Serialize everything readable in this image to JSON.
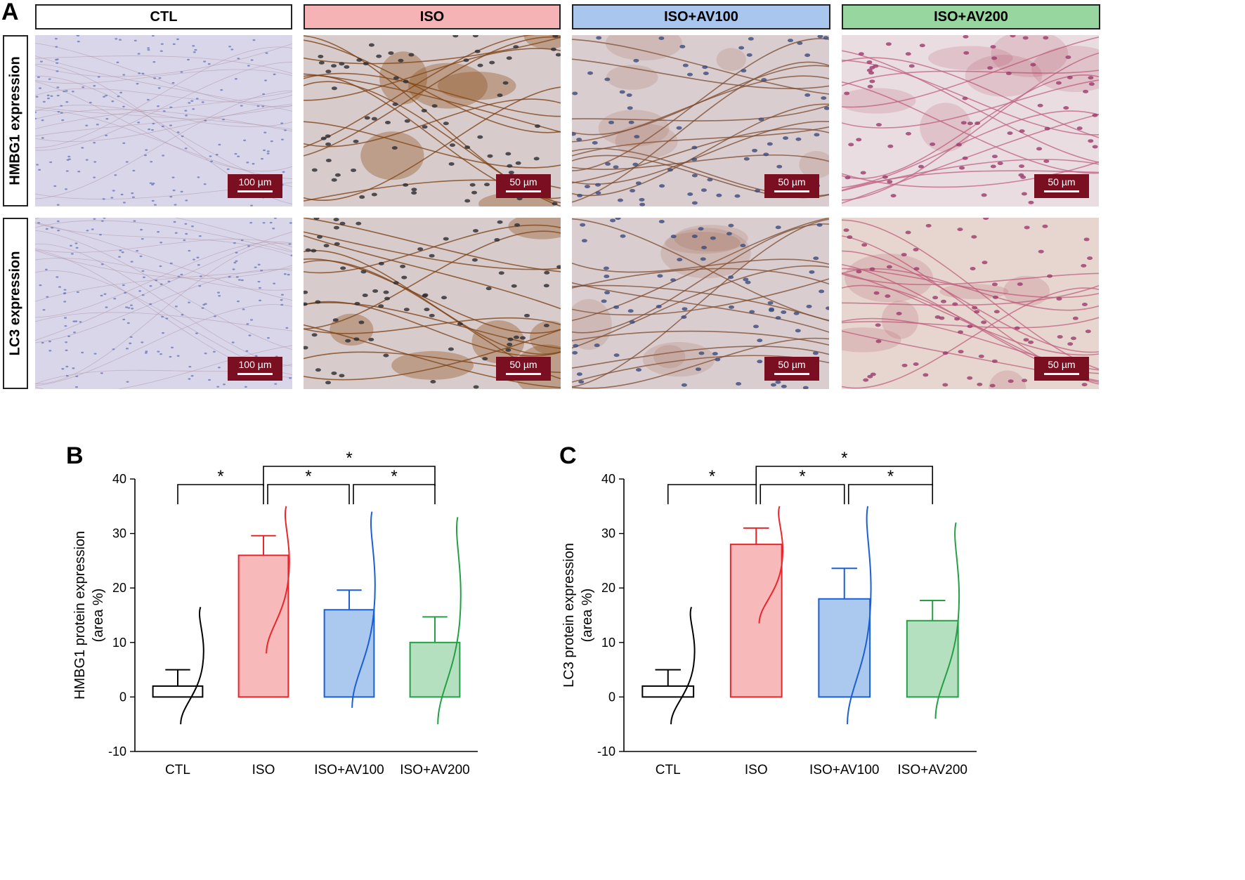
{
  "panel_a": {
    "letter": "A",
    "groups": [
      {
        "label": "CTL",
        "color": "#ffffff"
      },
      {
        "label": "ISO",
        "color": "#f6b3b5"
      },
      {
        "label": "ISO+AV100",
        "color": "#a9c6ef"
      },
      {
        "label": "ISO+AV200",
        "color": "#98d6a0"
      }
    ],
    "rows": [
      {
        "label": "HMBG1 expression",
        "scales": [
          "100 µm",
          "50 µm",
          "50 µm",
          "50 µm"
        ]
      },
      {
        "label": "LC3 expression",
        "scales": [
          "100 µm",
          "50 µm",
          "50 µm",
          "50 µm"
        ]
      }
    ]
  },
  "chart_data": [
    {
      "panel": "B",
      "type": "bar",
      "categories": [
        "CTL",
        "ISO",
        "ISO+AV100",
        "ISO+AV200"
      ],
      "values": [
        2,
        26,
        16,
        10
      ],
      "error_upper": [
        5,
        29.6,
        19.6,
        14.7
      ],
      "bar_colors": [
        "#ffffff",
        "#f8b9ba",
        "#abc8ef",
        "#b4e0c0"
      ],
      "edge_colors": [
        "#000000",
        "#e8262c",
        "#1a5fd6",
        "#23a045"
      ],
      "distribution_range": [
        [
          -5,
          16.5
        ],
        [
          8,
          35
        ],
        [
          -2,
          34
        ],
        [
          -5,
          33
        ]
      ],
      "ylabel": [
        "HMBG1 protein expression",
        "(area %)"
      ],
      "ylim": [
        -10,
        40
      ],
      "yticks": [
        "-10",
        "0",
        "10",
        "20",
        "30",
        "40"
      ],
      "significance": [
        {
          "from": 0,
          "to": 1,
          "label": "*"
        },
        {
          "from": 1,
          "to": 2,
          "label": "*"
        },
        {
          "from": 2,
          "to": 3,
          "label": "*"
        },
        {
          "from": 1,
          "to": 3,
          "label": "*"
        }
      ]
    },
    {
      "panel": "C",
      "type": "bar",
      "categories": [
        "CTL",
        "ISO",
        "ISO+AV100",
        "ISO+AV200"
      ],
      "values": [
        2,
        28,
        18,
        14
      ],
      "error_upper": [
        5,
        31,
        23.6,
        17.7
      ],
      "bar_colors": [
        "#ffffff",
        "#f8b9ba",
        "#abc8ef",
        "#b4e0c0"
      ],
      "edge_colors": [
        "#000000",
        "#e8262c",
        "#1a5fd6",
        "#23a045"
      ],
      "distribution_range": [
        [
          -5,
          16.5
        ],
        [
          13.5,
          35
        ],
        [
          -5,
          35
        ],
        [
          -4,
          32
        ]
      ],
      "ylabel": [
        "LC3 protein expression",
        "(area %)"
      ],
      "ylim": [
        -10,
        40
      ],
      "yticks": [
        "-10",
        "0",
        "10",
        "20",
        "30",
        "40"
      ],
      "significance": [
        {
          "from": 0,
          "to": 1,
          "label": "*"
        },
        {
          "from": 1,
          "to": 2,
          "label": "*"
        },
        {
          "from": 2,
          "to": 3,
          "label": "*"
        },
        {
          "from": 1,
          "to": 3,
          "label": "*"
        }
      ]
    }
  ]
}
